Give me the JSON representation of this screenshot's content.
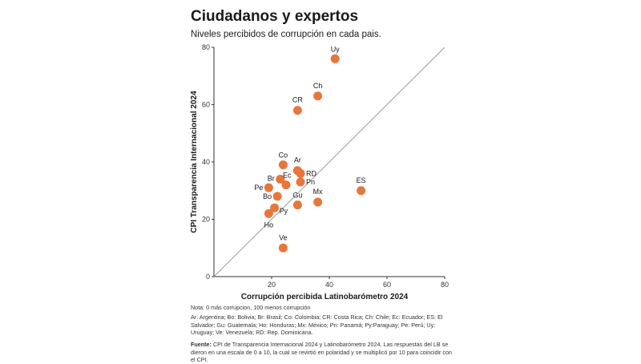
{
  "chart_data": {
    "type": "scatter",
    "title": "Ciudadanos y expertos",
    "subtitle": "Niveles percibidos de corrupción en cada pais.",
    "xlabel": "Corrupción percibida Latinobarómetro 2024",
    "ylabel": "CPI Transparencia Internacional 2024",
    "xlim": [
      0,
      80
    ],
    "ylim": [
      0,
      80
    ],
    "x_ticks": [
      "20",
      "40",
      "60",
      "80"
    ],
    "y_ticks": [
      "0",
      "20",
      "40",
      "60",
      "80"
    ],
    "grid": false,
    "reference_line": "diagonal",
    "color": "#e8763a",
    "points": [
      {
        "label": "Uy",
        "x": 42,
        "y": 76
      },
      {
        "label": "Ch",
        "x": 36,
        "y": 63
      },
      {
        "label": "CR",
        "x": 29,
        "y": 58
      },
      {
        "label": "ES",
        "x": 51,
        "y": 30
      },
      {
        "label": "Co",
        "x": 24,
        "y": 39
      },
      {
        "label": "Ar",
        "x": 29,
        "y": 37
      },
      {
        "label": "RD",
        "x": 30,
        "y": 36
      },
      {
        "label": "Pn",
        "x": 30,
        "y": 33
      },
      {
        "label": "Br",
        "x": 23,
        "y": 34
      },
      {
        "label": "Pe",
        "x": 19,
        "y": 31
      },
      {
        "label": "Bo",
        "x": 22,
        "y": 28
      },
      {
        "label": "Ec",
        "x": 25,
        "y": 32
      },
      {
        "label": "Gu",
        "x": 29,
        "y": 25
      },
      {
        "label": "Mx",
        "x": 36,
        "y": 26
      },
      {
        "label": "Py",
        "x": 21,
        "y": 24
      },
      {
        "label": "Ho",
        "x": 19,
        "y": 22
      },
      {
        "label": "Ve",
        "x": 24,
        "y": 10
      }
    ]
  },
  "footer": {
    "note": "Nota: 0 más corrupcion, 100 menos corrupción",
    "abbreviations": "Ar: Argentina; Bo: Bolivia; Br: Brasil; Co: Colombia; CR: Costa Rica; Ch: Chile; Ec: Ecuador; ES: El Salvador; Gu: Guatemala; Ho: Honduras; Mx: México; Pn: Panamá; Py:Paraguay;  Pe: Perú; Uy: Uruguay; Ve: Venezuela; RD: Rep. Dominicana.",
    "source_label": "Fuente:",
    "source_text": " CPI de Transparencia Internacional 2024 y Latinobarómetro 2024. Las respuestas del LB se dieron en una escala de 0 a 10, la cual se revirtió en polaridad y se multiplicó por 10 para coincidir con el CPI."
  }
}
